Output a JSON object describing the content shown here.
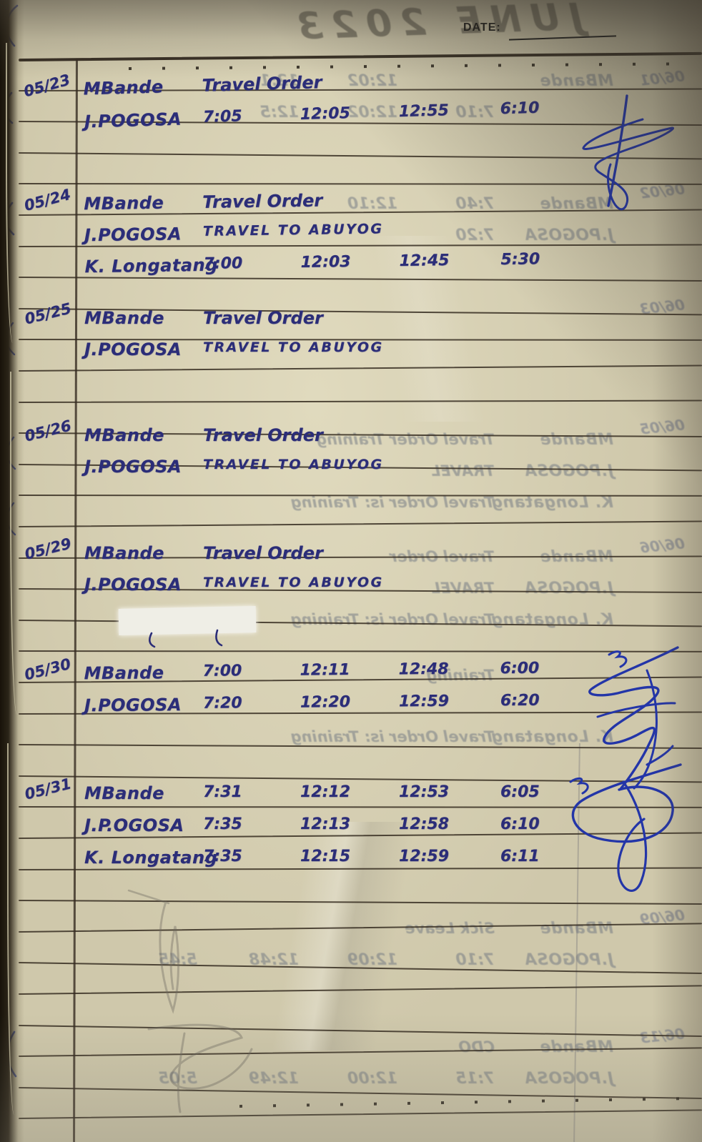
{
  "header": {
    "date_label": "DATE:"
  },
  "colors": {
    "paper": "#cfc8ab",
    "rule_line": "#362d21",
    "handwriting_ink": "#2b2d78",
    "signature_ink": "#2335a8",
    "bleedthrough_ink": "#68707e"
  },
  "entries": [
    {
      "date": "05/23",
      "signed": true,
      "rows": [
        {
          "name": "MBande",
          "activity": "Travel Order"
        },
        {
          "name": "J.POGOSA",
          "t": [
            "7:05",
            "12:05",
            "12:55",
            "6:10"
          ]
        }
      ]
    },
    {
      "date": "05/24",
      "rows": [
        {
          "name": "MBande",
          "activity": "Travel Order"
        },
        {
          "name": "J.POGOSA",
          "activity": "TRAVEL TO ABUYOG"
        },
        {
          "name": "K. Longatang",
          "t": [
            "7:00",
            "12:03",
            "12:45",
            "5:30"
          ]
        }
      ]
    },
    {
      "date": "05/25",
      "rows": [
        {
          "name": "MBande",
          "activity": "Travel Order"
        },
        {
          "name": "J.POGOSA",
          "activity": "TRAVEL TO ABUYOG"
        }
      ]
    },
    {
      "date": "05/26",
      "rows": [
        {
          "name": "MBande",
          "activity": "Travel Order"
        },
        {
          "name": "J.POGOSA",
          "activity": "TRAVEL TO ABUYOG"
        }
      ]
    },
    {
      "date": "05/29",
      "whiteout": true,
      "rows": [
        {
          "name": "MBande",
          "activity": "Travel Order"
        },
        {
          "name": "J.POGOSA",
          "activity": "TRAVEL TO ABUYOG"
        }
      ]
    },
    {
      "date": "05/30",
      "signed": true,
      "rows": [
        {
          "name": "MBande",
          "t": [
            "7:00",
            "12:11",
            "12:48",
            "6:00"
          ]
        },
        {
          "name": "J.POGOSA",
          "t": [
            "7:20",
            "12:20",
            "12:59",
            "6:20"
          ]
        }
      ]
    },
    {
      "date": "05/31",
      "signed": true,
      "rows": [
        {
          "name": "MBande",
          "t": [
            "7:31",
            "12:12",
            "12:53",
            "6:05"
          ]
        },
        {
          "name": "J.P.OGOSA",
          "t": [
            "7:35",
            "12:13",
            "12:58",
            "6:10"
          ]
        },
        {
          "name": "K. Longatang",
          "t": [
            "7:35",
            "12:15",
            "12:59",
            "6:11"
          ]
        }
      ]
    }
  ],
  "bleedthrough": {
    "title": "JUNE 2023",
    "margin_dates": [
      "06/01",
      "06/02",
      "06/03",
      "06/05",
      "06/06",
      "06/09",
      "06/13"
    ],
    "rows": [
      {
        "name": "MBande",
        "t2": "12:02",
        "t3": "12:1"
      },
      {
        "t1": "7:10",
        "t2": "12:02",
        "t3": "12:5"
      },
      {
        "name": "MBande",
        "t1": "7:40",
        "t2": "12:10"
      },
      {
        "name": "J.POGOSA",
        "t1": "7:20"
      },
      {
        "name": "MBande",
        "act": "Travel Order  Training"
      },
      {
        "name": "J.POGOSA",
        "act": "TRAVEL"
      },
      {
        "name": "K. Longatang",
        "act": "Travel Order is: Training"
      },
      {
        "name": "MBande",
        "act": "Travel Order"
      },
      {
        "name": "J.POGOSA",
        "act": "TRAVEL"
      },
      {
        "name": "K. Longatang",
        "act": "Travel Order is: Training"
      },
      {
        "act": "Training"
      },
      {
        "name": "K. Longatang",
        "act": "Travel Order is: Training"
      },
      {
        "name": "MBande",
        "act": "Sick Leave"
      },
      {
        "name": "J.POGOSA",
        "t1": "7:10",
        "t2": "12:09",
        "t3": "12:48",
        "t4": "5:45"
      },
      {
        "name": "MBande",
        "act": "CDO"
      },
      {
        "name": "J.POGOSA",
        "t1": "7:15",
        "t2": "12:00",
        "t3": "12:49",
        "t4": "5:05"
      }
    ]
  }
}
